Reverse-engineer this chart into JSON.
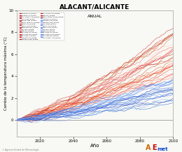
{
  "title": "ALACANT/ALICANTE",
  "subtitle": "ANUAL",
  "xlabel": "Año",
  "ylabel": "Cambio de la temperatura máxima (°C)",
  "xmin": 2006,
  "xmax": 2100,
  "ymin": -1.5,
  "ymax": 10,
  "yticks": [
    0,
    2,
    4,
    6,
    8,
    10
  ],
  "xticks": [
    2020,
    2040,
    2060,
    2080,
    2100
  ],
  "n_red_lines": 28,
  "n_blue_lines": 22,
  "bg_color": "#f8f8f4",
  "footer_text": "© Agencia Estatal de Meteorología",
  "red_colors": [
    "#cc0000",
    "#dd1111",
    "#bb0000",
    "#ee2222",
    "#ff3333",
    "#cc2200",
    "#dd0000",
    "#ff4444",
    "#aa0000",
    "#cc1100",
    "#ee3300",
    "#ff5533",
    "#dd2200",
    "#bb1100",
    "#cc3300",
    "#ee4422",
    "#ff6644",
    "#dd4411",
    "#cc4400",
    "#bb3300",
    "#ff9988",
    "#ff7766",
    "#ee6644",
    "#dd5533",
    "#cc5522",
    "#ffbbaa",
    "#ee9977",
    "#ff8855"
  ],
  "blue_colors": [
    "#0044cc",
    "#1155dd",
    "#2266ee",
    "#0033bb",
    "#3377ff",
    "#0055cc",
    "#1166dd",
    "#4488ff",
    "#0022aa",
    "#1133cc",
    "#2255ee",
    "#5599ff",
    "#3366dd",
    "#2255cc",
    "#4477dd",
    "#6699ee",
    "#77aaff",
    "#5588ee",
    "#4477cc",
    "#3366bb",
    "#aaccff",
    "#88aaff"
  ]
}
